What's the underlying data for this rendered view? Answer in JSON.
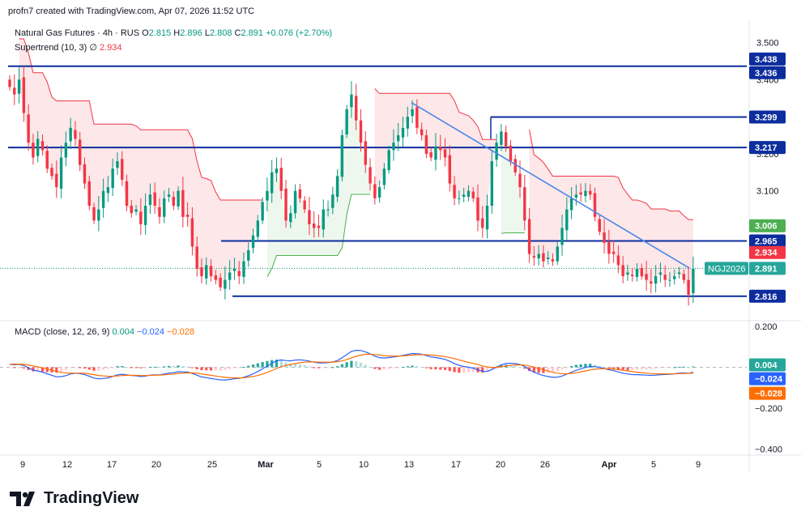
{
  "credit": "profn7 created with TradingView.com, Apr 07, 2026 11:52 UTC",
  "legend": {
    "symbol": "Natural Gas Futures · 4h · RUS",
    "o_label": "O",
    "o": "2.815",
    "h_label": "H",
    "h": "2.896",
    "l_label": "L",
    "l": "2.808",
    "c_label": "C",
    "c": "2.891",
    "change": "+0.076 (+2.70%)",
    "indicator_name": "Supertrend (10, 3)",
    "indicator_sep": "∅",
    "indicator_value": "2.934"
  },
  "macd_legend": {
    "name": "MACD (close, 12, 26, 9)",
    "hist": "0.004",
    "macd": "−0.024",
    "signal": "−0.028"
  },
  "brand": "TradingView",
  "colors": {
    "up": "#089981",
    "down": "#f23645",
    "hline": "#0d2d9e",
    "trend": "#4c86e8",
    "st_red": "#f23645",
    "st_green": "#4caf50",
    "macd": "#2962ff",
    "signal": "#ff6d00"
  },
  "chart_data": [
    {
      "type": "candlestick",
      "title": "Natural Gas Futures · 4h · RUS",
      "ylim": [
        2.75,
        3.56
      ],
      "x_ticks": [
        "9",
        "12",
        "17",
        "20",
        "25",
        "Mar",
        "5",
        "10",
        "13",
        "17",
        "20",
        "26",
        "Apr",
        "5",
        "9"
      ],
      "y_ticks": [
        "3.500",
        "3.400",
        "3.200",
        "3.100"
      ],
      "horizontal_levels": [
        {
          "value": 3.438,
          "label": "3.438"
        },
        {
          "value": 3.436,
          "label": "3.436"
        },
        {
          "value": 3.299,
          "label": "3.299"
        },
        {
          "value": 3.217,
          "label": "3.217"
        },
        {
          "value": 2.965,
          "label": "2.965"
        },
        {
          "value": 2.816,
          "label": "2.816"
        }
      ],
      "price_tags": [
        {
          "value": 3.006,
          "label": "3.006",
          "kind": "supertrend-support"
        },
        {
          "value": 2.934,
          "label": "2.934",
          "kind": "supertrend-resistance"
        },
        {
          "value": 2.891,
          "label": "2.891",
          "kind": "last-price",
          "symbol": "NGJ2026"
        }
      ],
      "trendline": {
        "from": 3.338,
        "to": 2.892
      },
      "close_series": [
        3.38,
        3.36,
        3.4,
        3.31,
        3.23,
        3.19,
        3.24,
        3.21,
        3.16,
        3.14,
        3.11,
        3.19,
        3.23,
        3.27,
        3.24,
        3.17,
        3.12,
        3.06,
        3.02,
        3.05,
        3.1,
        3.11,
        3.16,
        3.18,
        3.13,
        3.06,
        3.04,
        3.05,
        3.01,
        3.06,
        3.09,
        3.06,
        3.03,
        3.08,
        3.09,
        3.06,
        3.1,
        3.03,
        3.03,
        2.95,
        2.89,
        2.87,
        2.9,
        2.87,
        2.86,
        2.84,
        2.86,
        2.88,
        2.89,
        2.87,
        2.91,
        2.94,
        2.98,
        3.02,
        3.07,
        3.1,
        3.15,
        3.16,
        3.1,
        3.02,
        3.04,
        3.1,
        3.08,
        3.05,
        3.01,
        3.0,
        3.0,
        3.05,
        3.05,
        3.09,
        3.14,
        3.25,
        3.32,
        3.36,
        3.29,
        3.23,
        3.17,
        3.12,
        3.08,
        3.11,
        3.16,
        3.21,
        3.23,
        3.25,
        3.27,
        3.3,
        3.32,
        3.27,
        3.25,
        3.2,
        3.19,
        3.22,
        3.21,
        3.19,
        3.12,
        3.08,
        3.08,
        3.09,
        3.1,
        3.08,
        3.02,
        3.0,
        3.06,
        3.18,
        3.23,
        3.26,
        3.22,
        3.18,
        3.15,
        3.11,
        3.02,
        2.93,
        2.92,
        2.93,
        2.91,
        2.92,
        2.91,
        2.95,
        3.0,
        3.05,
        3.08,
        3.09,
        3.09,
        3.1,
        3.09,
        3.03,
        2.99,
        2.96,
        2.93,
        2.93,
        2.9,
        2.87,
        2.88,
        2.87,
        2.89,
        2.87,
        2.86,
        2.85,
        2.87,
        2.88,
        2.86,
        2.86,
        2.87,
        2.88,
        2.86,
        2.82,
        2.89
      ]
    },
    {
      "type": "bar+line",
      "title": "MACD (close, 12, 26, 9)",
      "ylim": [
        -0.43,
        0.22
      ],
      "y_ticks": [
        "0.200",
        "−0.200",
        "−0.400"
      ],
      "series": [
        {
          "name": "Histogram",
          "last": 0.004
        },
        {
          "name": "MACD",
          "last": -0.024
        },
        {
          "name": "Signal",
          "last": -0.028
        }
      ],
      "price_tags": [
        {
          "value": 0.004,
          "label": "0.004"
        },
        {
          "value": -0.024,
          "label": "−0.024"
        },
        {
          "value": -0.028,
          "label": "−0.028"
        }
      ]
    }
  ]
}
